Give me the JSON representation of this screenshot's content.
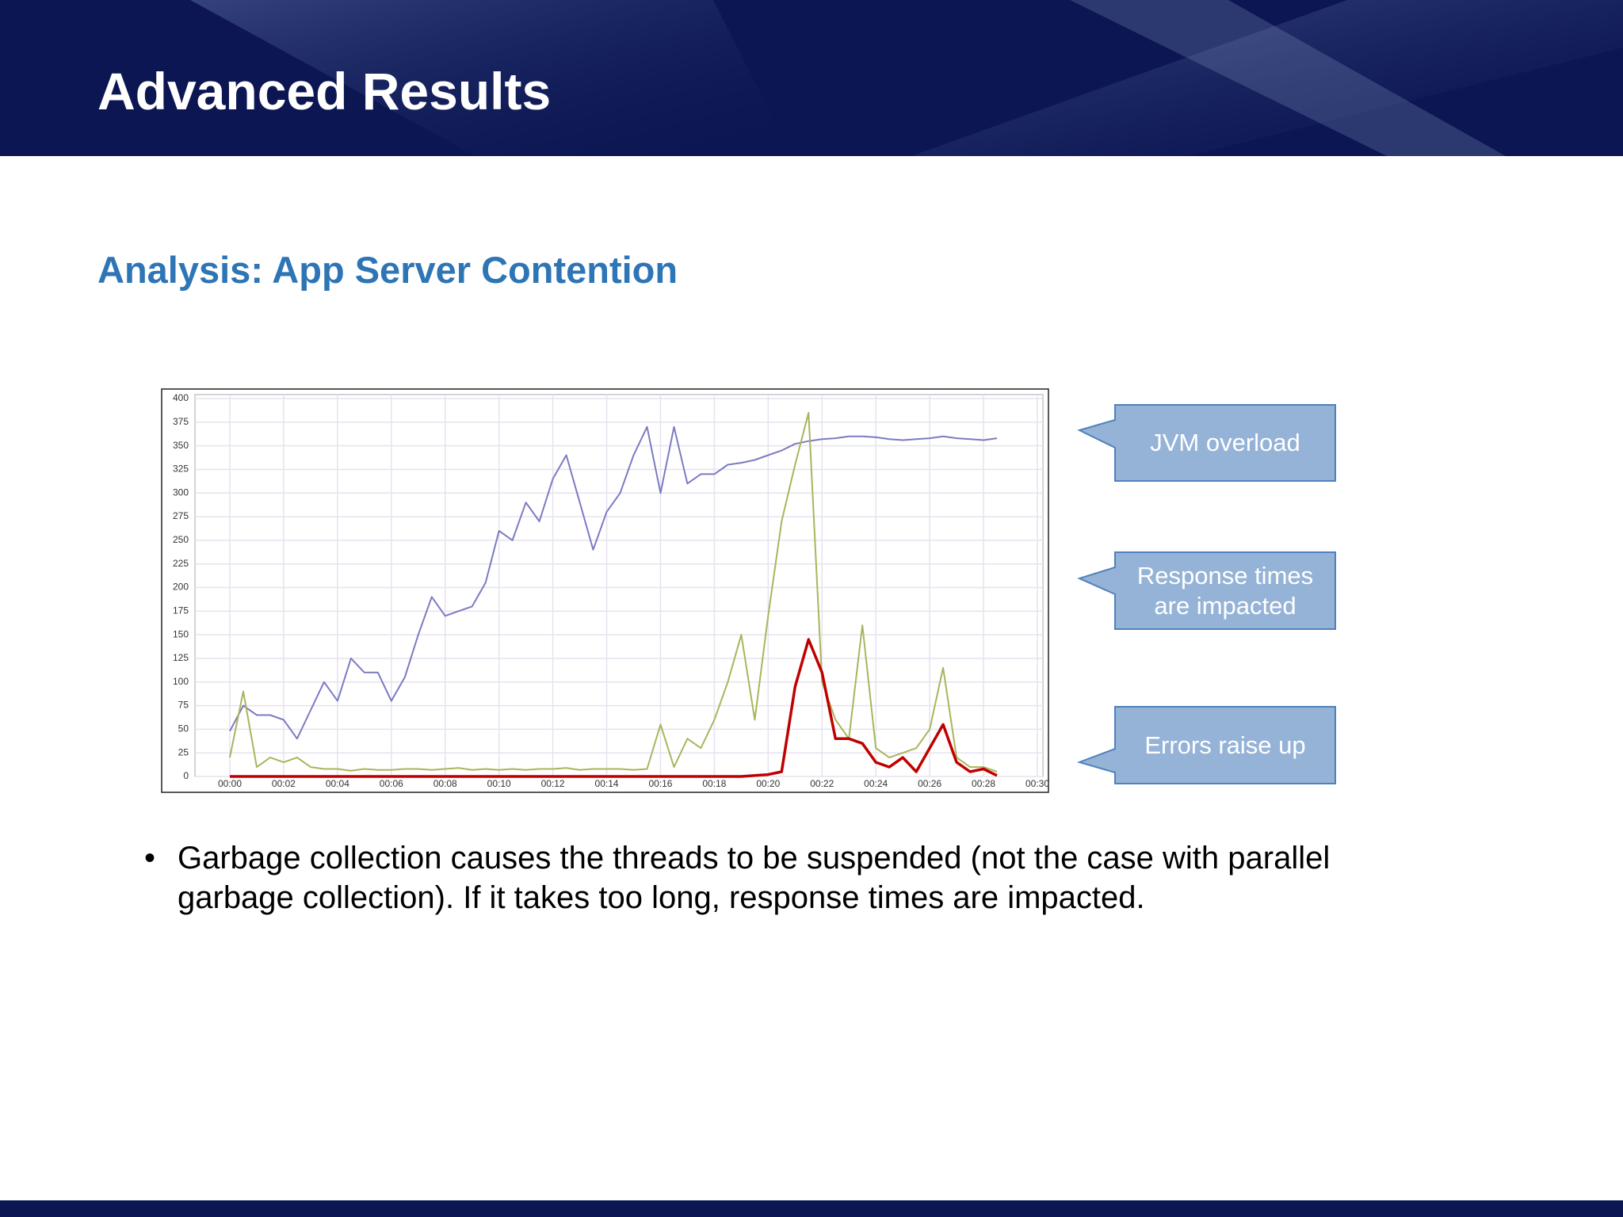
{
  "title": "Advanced Results",
  "subtitle": "Analysis: App Server Contention",
  "callouts": [
    "JVM overload",
    "Response times are impacted",
    "Errors raise up"
  ],
  "bullets": [
    "Garbage collection causes the threads to be suspended (not the case with parallel garbage collection). If it takes too long, response times are impacted."
  ],
  "chart_data": {
    "type": "line",
    "x": [
      0,
      0.5,
      1,
      1.5,
      2,
      2.5,
      3,
      3.5,
      4,
      4.5,
      5,
      5.5,
      6,
      6.5,
      7,
      7.5,
      8,
      8.5,
      9,
      9.5,
      10,
      10.5,
      11,
      11.5,
      12,
      12.5,
      13,
      13.5,
      14,
      14.5,
      15,
      15.5,
      16,
      16.5,
      17,
      17.5,
      18,
      18.5,
      19,
      19.5,
      20,
      20.5,
      21,
      21.5,
      22,
      22.5,
      23,
      23.5,
      24,
      24.5,
      25,
      25.5,
      26,
      26.5,
      27,
      27.5,
      28,
      28.5
    ],
    "series": [
      {
        "color": "#7b7bc2",
        "values": [
          48,
          75,
          65,
          65,
          60,
          40,
          70,
          100,
          80,
          125,
          110,
          110,
          80,
          105,
          150,
          190,
          170,
          175,
          180,
          205,
          260,
          250,
          290,
          270,
          315,
          340,
          290,
          240,
          280,
          300,
          340,
          370,
          300,
          370,
          310,
          320,
          320,
          330,
          332,
          335,
          340,
          345,
          352,
          355,
          357,
          358,
          360,
          360,
          359,
          357,
          356,
          357,
          358,
          360,
          358,
          357,
          356,
          358
        ]
      },
      {
        "color": "#a9b55c",
        "values": [
          20,
          90,
          10,
          20,
          15,
          20,
          10,
          8,
          8,
          6,
          8,
          7,
          7,
          8,
          8,
          7,
          8,
          9,
          7,
          8,
          7,
          8,
          7,
          8,
          8,
          9,
          7,
          8,
          8,
          8,
          7,
          8,
          55,
          10,
          40,
          30,
          60,
          100,
          150,
          60,
          170,
          270,
          330,
          385,
          100,
          60,
          40,
          160,
          30,
          20,
          25,
          30,
          50,
          115,
          20,
          10,
          10,
          5
        ]
      },
      {
        "color": "#c00000",
        "values": [
          0,
          0,
          0,
          0,
          0,
          0,
          0,
          0,
          0,
          0,
          0,
          0,
          0,
          0,
          0,
          0,
          0,
          0,
          0,
          0,
          0,
          0,
          0,
          0,
          0,
          0,
          0,
          0,
          0,
          0,
          0,
          0,
          0,
          0,
          0,
          0,
          0,
          0,
          0,
          1,
          2,
          5,
          95,
          145,
          110,
          40,
          40,
          35,
          15,
          10,
          20,
          5,
          30,
          55,
          15,
          5,
          8,
          1
        ]
      }
    ],
    "xlim": [
      0,
      30
    ],
    "xticks": [
      {
        "value": 0,
        "label": "00:00"
      },
      {
        "value": 2,
        "label": "00:02"
      },
      {
        "value": 4,
        "label": "00:04"
      },
      {
        "value": 6,
        "label": "00:06"
      },
      {
        "value": 8,
        "label": "00:08"
      },
      {
        "value": 10,
        "label": "00:10"
      },
      {
        "value": 12,
        "label": "00:12"
      },
      {
        "value": 14,
        "label": "00:14"
      },
      {
        "value": 16,
        "label": "00:16"
      },
      {
        "value": 18,
        "label": "00:18"
      },
      {
        "value": 20,
        "label": "00:20"
      },
      {
        "value": 22,
        "label": "00:22"
      },
      {
        "value": 24,
        "label": "00:24"
      },
      {
        "value": 26,
        "label": "00:26"
      },
      {
        "value": 28,
        "label": "00:28"
      },
      {
        "value": 30,
        "label": "00:30"
      }
    ],
    "ylim": [
      0,
      400
    ],
    "yticks": [
      0,
      25,
      50,
      75,
      100,
      125,
      150,
      175,
      200,
      225,
      250,
      275,
      300,
      325,
      350,
      375,
      400
    ],
    "grid": true
  }
}
